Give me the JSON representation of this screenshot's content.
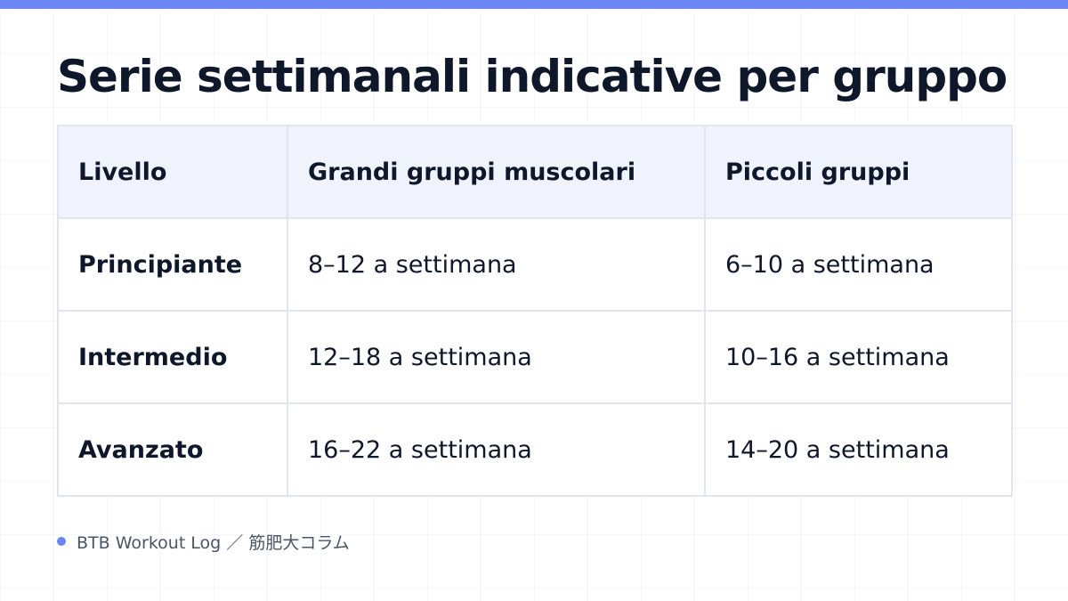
{
  "colors": {
    "accent": "#6b86f5",
    "header_bg": "#f1f3fc",
    "border": "#e2e5ee",
    "text": "#0f172a",
    "footer_text": "#4b5566"
  },
  "title": "Serie settimanali indicative per gruppo",
  "table": {
    "headers": [
      "Livello",
      "Grandi gruppi muscolari",
      "Piccoli gruppi"
    ],
    "rows": [
      [
        "Principiante",
        "8–12 a settimana",
        "6–10 a settimana"
      ],
      [
        "Intermedio",
        "12–18 a settimana",
        "10–16 a settimana"
      ],
      [
        "Avanzato",
        "16–22 a settimana",
        "14–20 a settimana"
      ]
    ]
  },
  "footer": {
    "text": "BTB Workout Log ／ 筋肥大コラム",
    "bullet_icon": "dot-icon"
  }
}
